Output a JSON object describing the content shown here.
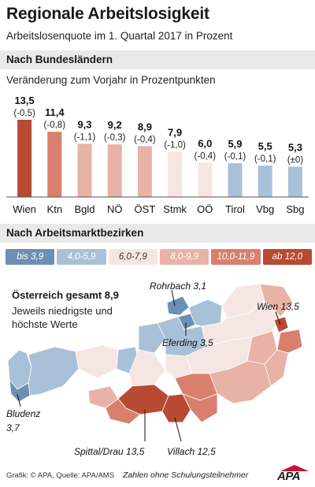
{
  "title": "Regionale Arbeitslosigkeit",
  "subtitle": "Arbeitslosenquote im 1. Quartal 2017 in Prozent",
  "section_states": "Nach Bundesländern",
  "bar_caption": "Veränderung zum Vorjahr in Prozentpunkten",
  "section_districts": "Nach Arbeitsmarktbezirken",
  "chart_data": {
    "type": "bar",
    "categories": [
      "Wien",
      "Ktn",
      "Bgld",
      "NÖ",
      "ÖST",
      "Stmk",
      "OÖ",
      "Tirol",
      "Vbg",
      "Sbg"
    ],
    "values": [
      13.5,
      11.4,
      9.3,
      9.2,
      8.9,
      7.9,
      6.0,
      5.9,
      5.5,
      5.3
    ],
    "value_labels": [
      "13,5",
      "11,4",
      "9,3",
      "9,2",
      "8,9",
      "7,9",
      "6,0",
      "5,9",
      "5,5",
      "5,3"
    ],
    "change_labels": [
      "(-0,5)",
      "(-0,8)",
      "(-1,1)",
      "(-0,3)",
      "(-0,4)",
      "(-1,0)",
      "(-0,4)",
      "(-0,1)",
      "(-0,1)",
      "(±0)"
    ],
    "ylim": [
      0,
      13.5
    ],
    "legend_position": "bottom",
    "title": "Regionale Arbeitslosigkeit",
    "xlabel": "",
    "ylabel": ""
  },
  "legend": [
    {
      "label": "bis 3,9",
      "color": "#6d8fb3",
      "text_color": "#ffffff"
    },
    {
      "label": "4,0-5,9",
      "color": "#a9c1d8",
      "text_color": "#ffffff"
    },
    {
      "label": "6,0-7,9",
      "color": "#f6e6e3",
      "text_color": "#333333"
    },
    {
      "label": "8,0-9,9",
      "color": "#e8b2a6",
      "text_color": "#ffffff"
    },
    {
      "label": "10,0-11,9",
      "color": "#d8806d",
      "text_color": "#ffffff"
    },
    {
      "label": "ab 12,0",
      "color": "#b84a33",
      "text_color": "#ffffff"
    }
  ],
  "map": {
    "total_label": "Österreich gesamt 8,9",
    "note": "Jeweils niedrigste und höchste Werte",
    "callouts": {
      "rohrbach": "Rohrbach 3,1",
      "wien": "Wien 13,5",
      "eferding": "Eferding 3,5",
      "bludenz_name": "Bludenz",
      "bludenz_value": "3,7",
      "spittal": "Spittal/Drau 13,5",
      "villach": "Villach 12,5"
    }
  },
  "footer": {
    "source": "Grafik: © APA, Quelle: APA/AMS",
    "note": "Zahlen ohne Schulungsteilnehmer",
    "logo": "APA"
  }
}
